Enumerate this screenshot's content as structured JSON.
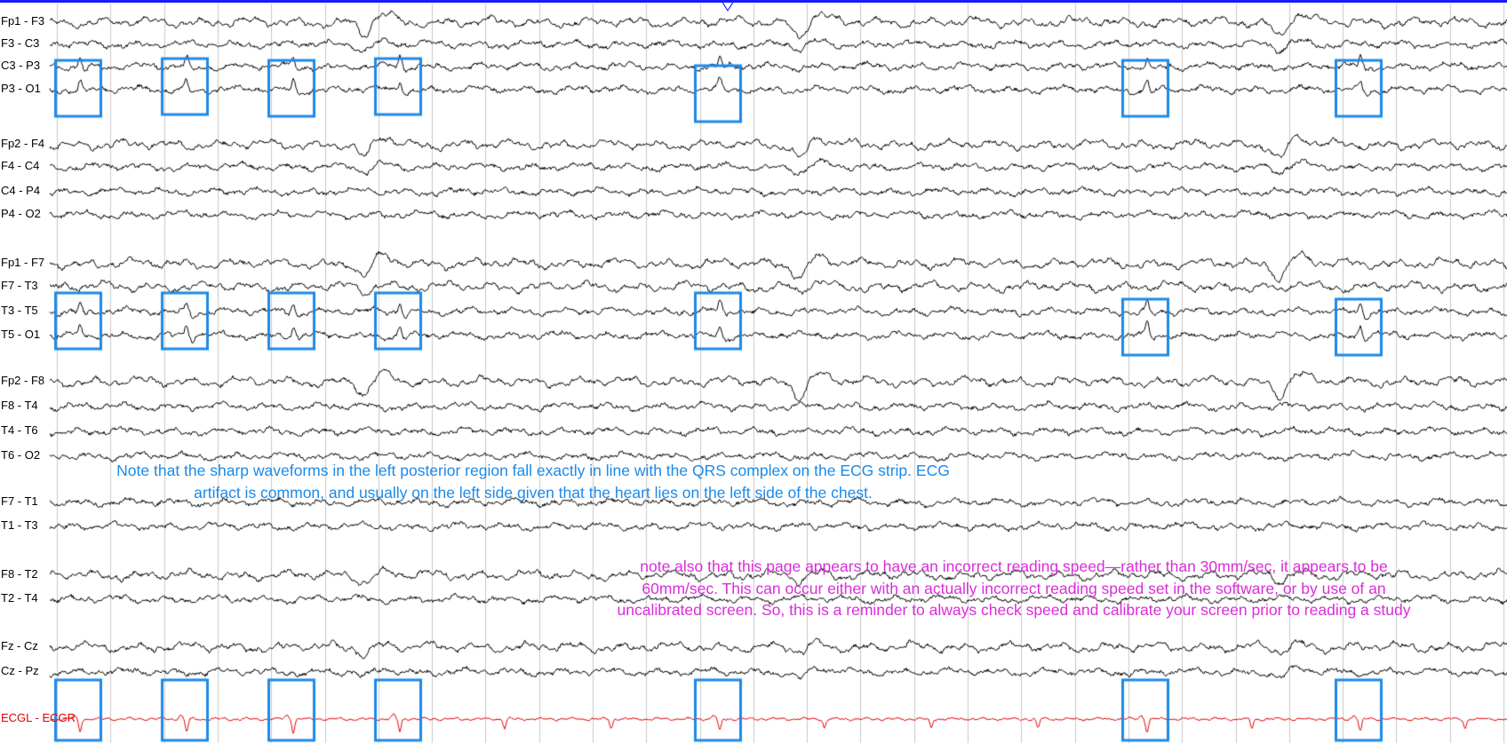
{
  "viewer": {
    "colors": {
      "trace": "#000000",
      "ecg_trace": "#e00000",
      "highlight_box": "#1c8ae8",
      "top_bar": "#1a1aff",
      "gridline": "#c8c8c8",
      "note_blue": "#1c8ae8",
      "note_magenta": "#d92ed9"
    },
    "channels": [
      {
        "label": "Fp1 - F3",
        "group": "left-parasagittal"
      },
      {
        "label": "F3 - C3",
        "group": "left-parasagittal"
      },
      {
        "label": "C3 - P3",
        "group": "left-parasagittal",
        "highlighted": true
      },
      {
        "label": "P3 - O1",
        "group": "left-parasagittal",
        "highlighted": true
      },
      {
        "label": "Fp2 - F4",
        "group": "right-parasagittal"
      },
      {
        "label": "F4 - C4",
        "group": "right-parasagittal"
      },
      {
        "label": "C4 - P4",
        "group": "right-parasagittal"
      },
      {
        "label": "P4 - O2",
        "group": "right-parasagittal"
      },
      {
        "label": "Fp1 - F7",
        "group": "left-temporal"
      },
      {
        "label": "F7 - T3",
        "group": "left-temporal"
      },
      {
        "label": "T3 - T5",
        "group": "left-temporal",
        "highlighted": true
      },
      {
        "label": "T5 - O1",
        "group": "left-temporal",
        "highlighted": true
      },
      {
        "label": "Fp2 - F8",
        "group": "right-temporal"
      },
      {
        "label": "F8 - T4",
        "group": "right-temporal"
      },
      {
        "label": "T4 - T6",
        "group": "right-temporal"
      },
      {
        "label": "T6 - O2",
        "group": "right-temporal"
      },
      {
        "label": "F7 - T1",
        "group": "anterior-temporal"
      },
      {
        "label": "T1 - T3",
        "group": "anterior-temporal"
      },
      {
        "label": "F8 - T2",
        "group": "anterior-temporal"
      },
      {
        "label": "T2 - T4",
        "group": "anterior-temporal"
      },
      {
        "label": "Fz - Cz",
        "group": "midline"
      },
      {
        "label": "Cz - Pz",
        "group": "midline"
      },
      {
        "label": "ECGL - ECGR",
        "group": "ecg",
        "is_ecg": true
      }
    ]
  },
  "notes": {
    "ecg_note": {
      "line1": "Note that the sharp waveforms in the left posterior region fall exactly in line with the QRS complex on the ECG strip. ECG",
      "line2": "artifact is common, and usually on the left side given that the heart lies on the left side of the chest."
    },
    "speed_note": {
      "line1": "note also that this page appears to have an incorrect reading speed—rather than 30mm/sec, it appears to be",
      "line2": "60mm/sec. This can occur either with an actually incorrect reading speed set in the software, or by use of an",
      "line3": "uncalibrated screen. So, this is a reminder to always check speed and calibrate your screen prior to reading a study"
    }
  }
}
